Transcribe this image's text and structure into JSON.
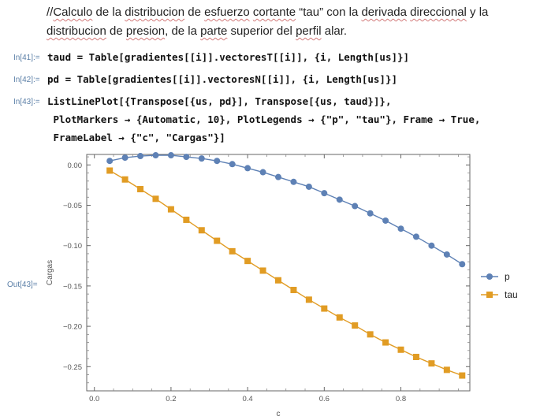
{
  "notebook": {
    "text_cell": {
      "prefix": "//",
      "line1_parts": [
        "Calculo",
        " de la ",
        "distribucion",
        " de ",
        "esfuerzo",
        " ",
        "cortante",
        " “tau” con la ",
        "derivada",
        " ",
        "direccional",
        " y la"
      ],
      "line2_parts": [
        "distribucion",
        " de ",
        "presion",
        ", de la ",
        "parte",
        " superior del ",
        "perfil",
        " alar."
      ]
    },
    "cells": [
      {
        "label": "In[41]:=",
        "code": "taud = Table[gradientes[[i]].vectoresT[[i]], {i, Length[us]}]"
      },
      {
        "label": "In[42]:=",
        "code": "pd = Table[gradientes[[i]].vectoresN[[i]], {i, Length[us]}]"
      },
      {
        "label": "In[43]:=",
        "code_lines": [
          "ListLinePlot[{Transpose[{us, pd}], Transpose[{us, taud}]},",
          " PlotMarkers → {Automatic, 10}, PlotLegends → {\"p\", \"tau\"}, Frame → True,",
          " FrameLabel → {\"c\", \"Cargas\"}]"
        ]
      }
    ],
    "out_label": "Out[43]="
  },
  "chart_data": {
    "type": "line",
    "xlabel": "c",
    "ylabel": "Cargas",
    "xlim": [
      -0.02,
      0.98
    ],
    "ylim": [
      -0.28,
      0.013
    ],
    "x_ticks": [
      0.0,
      0.2,
      0.4,
      0.6,
      0.8
    ],
    "x_tick_labels": [
      "0.0",
      "0.2",
      "0.4",
      "0.6",
      "0.8"
    ],
    "y_ticks": [
      0.0,
      -0.05,
      -0.1,
      -0.15,
      -0.2,
      -0.25
    ],
    "y_tick_labels": [
      "0.00",
      "−0.05",
      "−0.10",
      "−0.15",
      "−0.20",
      "−0.25"
    ],
    "legend_position": "right",
    "series": [
      {
        "name": "p",
        "color": "#5e81b5",
        "marker": "circle",
        "x": [
          0.04,
          0.08,
          0.12,
          0.16,
          0.2,
          0.24,
          0.28,
          0.32,
          0.36,
          0.4,
          0.44,
          0.48,
          0.52,
          0.56,
          0.6,
          0.64,
          0.68,
          0.72,
          0.76,
          0.8,
          0.84,
          0.88,
          0.92,
          0.96
        ],
        "y": [
          0.005,
          0.009,
          0.011,
          0.012,
          0.012,
          0.01,
          0.008,
          0.005,
          0.001,
          -0.004,
          -0.009,
          -0.015,
          -0.021,
          -0.027,
          -0.035,
          -0.043,
          -0.051,
          -0.06,
          -0.069,
          -0.079,
          -0.089,
          -0.1,
          -0.111,
          -0.123
        ]
      },
      {
        "name": "tau",
        "color": "#e19c24",
        "marker": "square",
        "x": [
          0.04,
          0.08,
          0.12,
          0.16,
          0.2,
          0.24,
          0.28,
          0.32,
          0.36,
          0.4,
          0.44,
          0.48,
          0.52,
          0.56,
          0.6,
          0.64,
          0.68,
          0.72,
          0.76,
          0.8,
          0.84,
          0.88,
          0.92,
          0.96
        ],
        "y": [
          -0.007,
          -0.018,
          -0.03,
          -0.042,
          -0.055,
          -0.068,
          -0.081,
          -0.094,
          -0.107,
          -0.119,
          -0.131,
          -0.143,
          -0.155,
          -0.167,
          -0.178,
          -0.189,
          -0.199,
          -0.21,
          -0.22,
          -0.229,
          -0.238,
          -0.246,
          -0.254,
          -0.261
        ]
      }
    ]
  }
}
